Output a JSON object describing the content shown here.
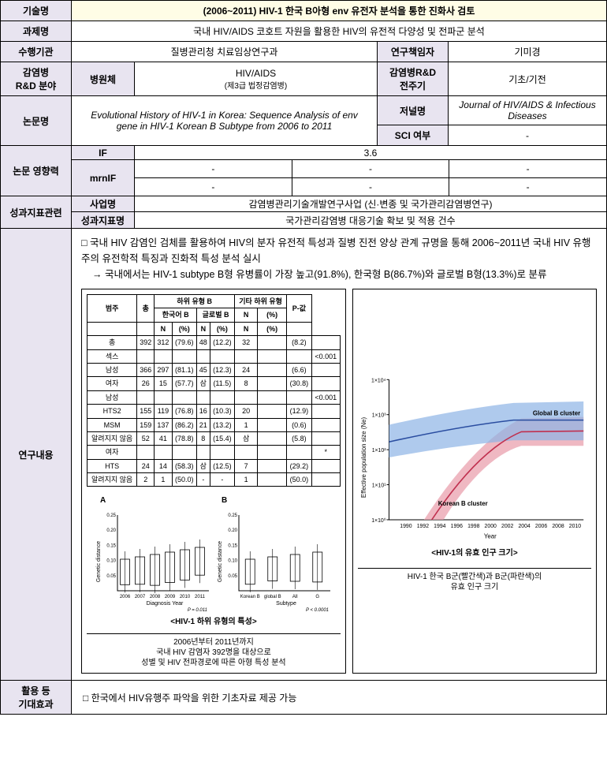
{
  "header": {
    "tech_name_label": "기술명",
    "tech_name": "(2006~2011) HIV-1 한국 B아형 env 유전자 분석을 통한 진화사 검토",
    "project_label": "과제명",
    "project": "국내 HIV/AIDS 코호트 자원을 활용한 HIV의 유전적 다양성 및 전파군 분석",
    "org_label": "수행기관",
    "org": "질병관리청 치료임상연구과",
    "pi_label": "연구책임자",
    "pi": "기미경",
    "field_label": "감염병\nR&D 분야",
    "pathogen_label": "병원체",
    "pathogen": "HIV/AIDS",
    "pathogen_sub": "(제3급 법정감염병)",
    "cycle_label": "감염병R&D\n전주기",
    "cycle": "기초/기전",
    "paper_label": "논문명",
    "paper": "Evolutional History of HIV-1 in Korea: Sequence Analysis of env gene in HIV-1 Korean B Subtype from 2006 to 2011",
    "journal_label": "저널명",
    "journal": "Journal of HIV/AIDS & Infectious Diseases",
    "sci_label": "SCI 여부",
    "sci": "-",
    "impact_label": "논문 영향력",
    "if_label": "IF",
    "if_val": "3.6",
    "mrnif_label": "mrnIF",
    "mrnif_val1": "-",
    "mrnif_val2": "-",
    "mrnif_val3": "-",
    "mrnif_val4": "-",
    "mrnif_val5": "-",
    "mrnif_val6": "-",
    "perf_label": "성과지표관련",
    "biz_label": "사업명",
    "biz": "감염병관리기술개발연구사업 (신·변종 및 국가관리감염병연구)",
    "ind_label": "성과지표명",
    "ind": "국가관리감염병 대응기술 확보 및 적용 건수"
  },
  "research": {
    "label": "연구내용",
    "para1": "□ 국내 HIV 감염인 검체를 활용하여 HIV의 분자 유전적 특성과 질병 진전 양상 관계 규명을 통해 2006~2011년 국내 HIV 유행주의 유전학적 특징과 진화적 특성 분석 실시",
    "para2": "→ 국내에서는 HIV-1 subtype B형 유병률이 가장 높고(91.8%), 한국형 B(86.7%)와 글로벌 B형(13.3%)로 분류",
    "leftFig": {
      "table_headers": [
        "범주",
        "총",
        "한국어 B",
        "",
        "글로벌 B",
        "",
        "기타 하위 유형",
        "",
        "P-값"
      ],
      "table_sub": [
        "",
        "",
        "N",
        "(%)",
        "N",
        "(%)",
        "N",
        "(%)",
        ""
      ],
      "rows": [
        [
          "총",
          "392",
          "312",
          "(79.6)",
          "48",
          "(12.2)",
          "32",
          "",
          "(8.2)",
          ""
        ],
        [
          "섹스",
          "",
          "",
          "",
          "",
          "",
          "",
          "",
          "",
          "<0.001"
        ],
        [
          "남성",
          "366",
          "297",
          "(81.1)",
          "45",
          "(12.3)",
          "24",
          "",
          "(6.6)",
          ""
        ],
        [
          "여자",
          "26",
          "15",
          "(57.7)",
          "삼",
          "(11.5)",
          "8",
          "",
          "(30.8)",
          ""
        ],
        [
          "남성",
          "",
          "",
          "",
          "",
          "",
          "",
          "",
          "",
          "<0.001"
        ],
        [
          "HTS2",
          "155",
          "119",
          "(76.8)",
          "16",
          "(10.3)",
          "20",
          "",
          "(12.9)",
          ""
        ],
        [
          "MSM",
          "159",
          "137",
          "(86.2)",
          "21",
          "(13.2)",
          "1",
          "",
          "(0.6)",
          ""
        ],
        [
          "알려지지 않음",
          "52",
          "41",
          "(78.8)",
          "8",
          "(15.4)",
          "삼",
          "",
          "(5.8)",
          ""
        ],
        [
          "여자",
          "",
          "",
          "",
          "",
          "",
          "",
          "",
          "",
          "*"
        ],
        [
          "HTS",
          "24",
          "14",
          "(58.3)",
          "삼",
          "(12.5)",
          "7",
          "",
          "(29.2)",
          ""
        ],
        [
          "알려지지 않음",
          "2",
          "1",
          "(50.0)",
          "-",
          "-",
          "1",
          "",
          "(50.0)",
          ""
        ]
      ],
      "chartA_label": "A",
      "chartB_label": "B",
      "ylabel": "Genetic distance",
      "xlabelA": "Diagnosis Year",
      "xlabelB": "Subtype",
      "yearsA": [
        "2006",
        "2007",
        "2008",
        "2009",
        "2010",
        "2011"
      ],
      "catsB": [
        "Korean B",
        "global B",
        "All",
        "G"
      ],
      "pA": "P = 0.011",
      "pB": "P < 0.0001",
      "title": "<HIV-1 하위 유형의 특성>",
      "caption": "2006년부터 2011년까지\n국내 HIV 감염자 392명을 대상으로\n성별 및 HIV 전파경로에 따른 아형 특성 분석"
    },
    "rightFig": {
      "ylabel": "Effective population size (Ne)",
      "xlabel": "Year",
      "globalLabel": "Global B cluster",
      "koreanLabel": "Korean B cluster",
      "title": "<HIV-1의 유효 인구 크기>",
      "caption": "HIV-1 한국 B군(빨간색)과 B군(파란색)의\n유효 인구 크기",
      "colors": {
        "korean": "#e89aa8",
        "koreanLine": "#c0304f",
        "global": "#8db3e6",
        "globalLine": "#2a4da0"
      }
    }
  },
  "effect": {
    "label": "활용 등\n기대효과",
    "text": "□ 한국에서 HIV유행주 파악을 위한 기초자료 제공 가능"
  }
}
